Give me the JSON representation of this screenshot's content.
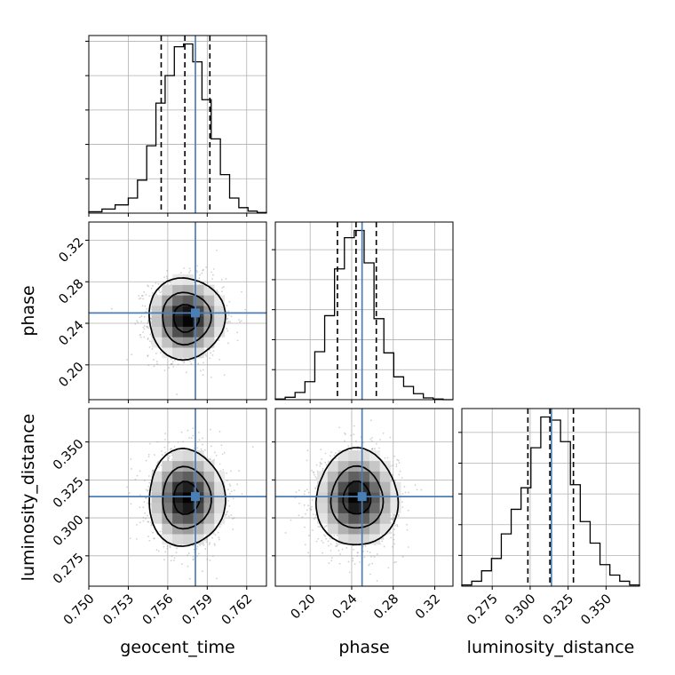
{
  "colors": {
    "truth": "#4a7fb5",
    "hist": "#000000",
    "grid": "#b0b0b0",
    "scatter": "#9a9a9a"
  },
  "chart_data": {
    "type": "corner",
    "parameters": [
      "geocent_time",
      "phase",
      "luminosity_distance"
    ],
    "truths": {
      "geocent_time": 0.7581,
      "phase": 0.25,
      "luminosity_distance": 0.314
    },
    "ranges": {
      "geocent_time": [
        0.75,
        0.7635
      ],
      "phase": [
        0.1665,
        0.3375
      ],
      "luminosity_distance": [
        0.255,
        0.372
      ]
    },
    "ticks": {
      "geocent_time": {
        "values": [
          0.75,
          0.753,
          0.756,
          0.759,
          0.762
        ],
        "labels": [
          "0.750",
          "0.753",
          "0.756",
          "0.759",
          "0.762"
        ]
      },
      "phase": {
        "values": [
          0.2,
          0.24,
          0.28,
          0.32
        ],
        "labels": [
          "0.20",
          "0.24",
          "0.28",
          "0.32"
        ]
      },
      "luminosity_distance": {
        "values": [
          0.275,
          0.3,
          0.325,
          0.35
        ],
        "labels": [
          "0.275",
          "0.300",
          "0.325",
          "0.350"
        ]
      }
    },
    "quantiles": {
      "geocent_time": [
        0.7555,
        0.7573,
        0.7592
      ],
      "phase": [
        0.2263,
        0.2442,
        0.2637
      ],
      "luminosity_distance": [
        0.2985,
        0.313,
        0.3285
      ]
    },
    "histograms": {
      "geocent_time": {
        "edges": [
          0.75,
          0.751,
          0.752,
          0.753,
          0.7537,
          0.7544,
          0.7551,
          0.7558,
          0.7565,
          0.7572,
          0.7579,
          0.7586,
          0.7593,
          0.76,
          0.7607,
          0.7614,
          0.7621,
          0.7628,
          0.7635
        ],
        "counts": [
          2,
          6,
          12,
          22,
          48,
          98,
          160,
          200,
          242,
          246,
          220,
          165,
          108,
          56,
          22,
          8,
          3,
          1
        ]
      },
      "phase": {
        "edges": [
          0.1665,
          0.176,
          0.1855,
          0.195,
          0.2045,
          0.214,
          0.2235,
          0.233,
          0.2425,
          0.252,
          0.2615,
          0.271,
          0.2805,
          0.29,
          0.2995,
          0.309,
          0.3185,
          0.328,
          0.3375
        ],
        "counts": [
          1,
          4,
          12,
          30,
          80,
          140,
          218,
          270,
          282,
          228,
          135,
          78,
          38,
          22,
          10,
          3,
          1,
          0
        ]
      },
      "luminosity_distance": {
        "edges": [
          0.255,
          0.2615,
          0.268,
          0.2745,
          0.281,
          0.2875,
          0.294,
          0.3005,
          0.307,
          0.3135,
          0.32,
          0.3265,
          0.333,
          0.3395,
          0.346,
          0.3525,
          0.359,
          0.3655,
          0.372
        ],
        "counts": [
          2,
          8,
          25,
          45,
          85,
          125,
          160,
          225,
          275,
          270,
          235,
          165,
          105,
          70,
          35,
          18,
          8,
          2
        ]
      }
    },
    "scatter_means": {
      "geocent_time": 0.7574,
      "phase": 0.245,
      "luminosity_distance": 0.313
    },
    "scatter_sds": {
      "geocent_time": 0.0014,
      "phase": 0.019,
      "luminosity_distance": 0.0155
    },
    "correlations": {
      "phase|geocent_time": 0.0,
      "luminosity_distance|geocent_time": 0.0,
      "luminosity_distance|phase": 0.0
    },
    "grid": true
  }
}
